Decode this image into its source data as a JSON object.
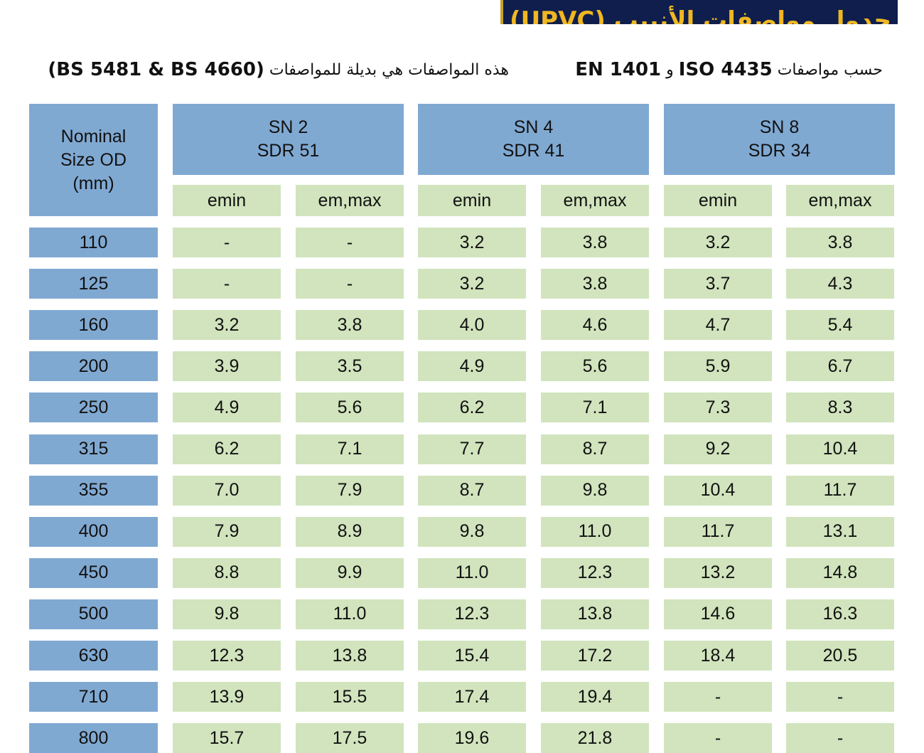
{
  "banner": {
    "title": "جدول مواصفات الأنبيب (UPVC)"
  },
  "standards": {
    "right_prefix": "حسب مواصفات",
    "right_iso": "ISO 4435",
    "right_and": "و",
    "right_en": "EN 1401",
    "left_prefix": "هذه المواصفات هي بديلة للمواصفات",
    "left_codes": "(BS 5481 & BS 4660)"
  },
  "table": {
    "corner": [
      "Nominal",
      "Size OD",
      "(mm)"
    ],
    "groups": [
      {
        "sn": "SN 2",
        "sdr": "SDR 51"
      },
      {
        "sn": "SN 4",
        "sdr": "SDR 41"
      },
      {
        "sn": "SN 8",
        "sdr": "SDR 34"
      }
    ],
    "subheaders": [
      "emin",
      "em,max",
      "emin",
      "em,max",
      "emin",
      "em,max"
    ],
    "rows": [
      {
        "size": "110",
        "values": [
          "-",
          "-",
          "3.2",
          "3.8",
          "3.2",
          "3.8"
        ]
      },
      {
        "size": "125",
        "values": [
          "-",
          "-",
          "3.2",
          "3.8",
          "3.7",
          "4.3"
        ]
      },
      {
        "size": "160",
        "values": [
          "3.2",
          "3.8",
          "4.0",
          "4.6",
          "4.7",
          "5.4"
        ]
      },
      {
        "size": "200",
        "values": [
          "3.9",
          "3.5",
          "4.9",
          "5.6",
          "5.9",
          "6.7"
        ]
      },
      {
        "size": "250",
        "values": [
          "4.9",
          "5.6",
          "6.2",
          "7.1",
          "7.3",
          "8.3"
        ]
      },
      {
        "size": "315",
        "values": [
          "6.2",
          "7.1",
          "7.7",
          "8.7",
          "9.2",
          "10.4"
        ]
      },
      {
        "size": "355",
        "values": [
          "7.0",
          "7.9",
          "8.7",
          "9.8",
          "10.4",
          "11.7"
        ]
      },
      {
        "size": "400",
        "values": [
          "7.9",
          "8.9",
          "9.8",
          "11.0",
          "11.7",
          "13.1"
        ]
      },
      {
        "size": "450",
        "values": [
          "8.8",
          "9.9",
          "11.0",
          "12.3",
          "13.2",
          "14.8"
        ]
      },
      {
        "size": "500",
        "values": [
          "9.8",
          "11.0",
          "12.3",
          "13.8",
          "14.6",
          "16.3"
        ]
      },
      {
        "size": "630",
        "values": [
          "12.3",
          "13.8",
          "15.4",
          "17.2",
          "18.4",
          "20.5"
        ]
      },
      {
        "size": "710",
        "values": [
          "13.9",
          "15.5",
          "17.4",
          "19.4",
          "-",
          "-"
        ]
      },
      {
        "size": "800",
        "values": [
          "15.7",
          "17.5",
          "19.6",
          "21.8",
          "-",
          "-"
        ]
      }
    ]
  },
  "colors": {
    "blue": "#80a9d2",
    "green": "#d1e4bd",
    "banner": "#0f1e4c",
    "banner_text": "#f0b722"
  }
}
